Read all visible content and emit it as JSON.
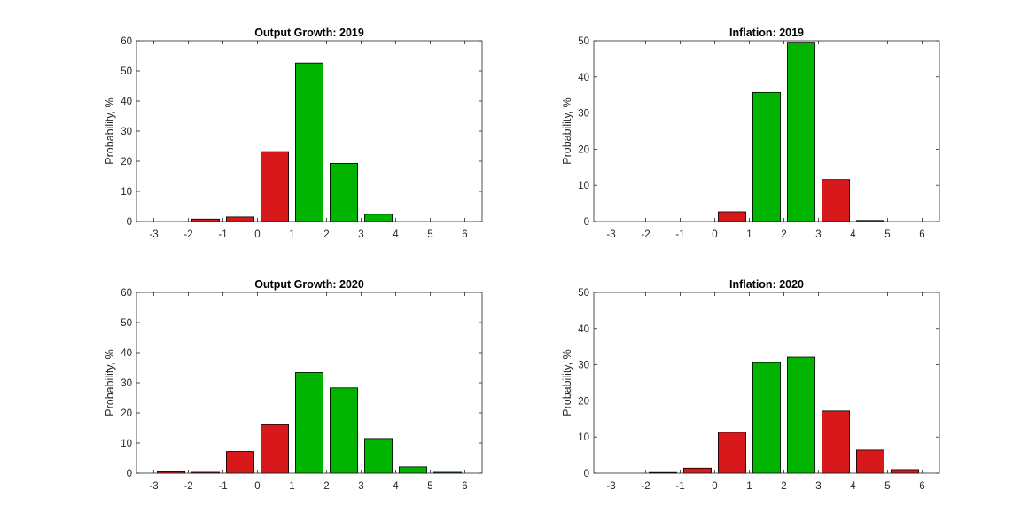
{
  "figure_colors": {
    "below": "#d7191c",
    "within": "#00b400",
    "edge": "#000000",
    "axis": "#262626",
    "background": "#ffffff"
  },
  "chart_data": [
    {
      "type": "bar",
      "title": "Output Growth: 2019",
      "ylabel": "Probability, %",
      "xlabel": "",
      "xlim": [
        -3.5,
        6.5
      ],
      "ylim": [
        0,
        60
      ],
      "xticks": [
        -3,
        -2,
        -1,
        0,
        1,
        2,
        3,
        4,
        5,
        6
      ],
      "yticks": [
        0,
        10,
        20,
        30,
        40,
        50,
        60
      ],
      "bin_edges": [
        -3,
        -2,
        -1,
        0,
        1,
        2,
        3,
        4,
        5,
        6
      ],
      "values": [
        0,
        0.8,
        1.5,
        23.2,
        52.6,
        19.3,
        2.4,
        0,
        0
      ],
      "colors": [
        "red",
        "red",
        "red",
        "red",
        "green",
        "green",
        "green",
        "green",
        "green"
      ]
    },
    {
      "type": "bar",
      "title": "Inflation: 2019",
      "ylabel": "Probability, %",
      "xlabel": "",
      "xlim": [
        -3.5,
        6.5
      ],
      "ylim": [
        0,
        50
      ],
      "xticks": [
        -3,
        -2,
        -1,
        0,
        1,
        2,
        3,
        4,
        5,
        6
      ],
      "yticks": [
        0,
        10,
        20,
        30,
        40,
        50
      ],
      "bin_edges": [
        -3,
        -2,
        -1,
        0,
        1,
        2,
        3,
        4,
        5,
        6
      ],
      "values": [
        0,
        0,
        0,
        2.7,
        35.7,
        49.6,
        11.6,
        0.3,
        0
      ],
      "colors": [
        "red",
        "red",
        "red",
        "red",
        "green",
        "green",
        "red",
        "red",
        "red"
      ]
    },
    {
      "type": "bar",
      "title": "Output Growth: 2020",
      "ylabel": "Probability, %",
      "xlabel": "",
      "xlim": [
        -3.5,
        6.5
      ],
      "ylim": [
        0,
        60
      ],
      "xticks": [
        -3,
        -2,
        -1,
        0,
        1,
        2,
        3,
        4,
        5,
        6
      ],
      "yticks": [
        0,
        10,
        20,
        30,
        40,
        50,
        60
      ],
      "bin_edges": [
        -3,
        -2,
        -1,
        0,
        1,
        2,
        3,
        4,
        5,
        6
      ],
      "values": [
        0.5,
        0.3,
        7.2,
        16.1,
        33.4,
        28.3,
        11.5,
        2.1,
        0.3
      ],
      "colors": [
        "red",
        "red",
        "red",
        "red",
        "green",
        "green",
        "green",
        "green",
        "green"
      ]
    },
    {
      "type": "bar",
      "title": "Inflation: 2020",
      "ylabel": "Probability, %",
      "xlabel": "",
      "xlim": [
        -3.5,
        6.5
      ],
      "ylim": [
        0,
        50
      ],
      "xticks": [
        -3,
        -2,
        -1,
        0,
        1,
        2,
        3,
        4,
        5,
        6
      ],
      "yticks": [
        0,
        10,
        20,
        30,
        40,
        50
      ],
      "bin_edges": [
        -3,
        -2,
        -1,
        0,
        1,
        2,
        3,
        4,
        5,
        6
      ],
      "values": [
        0,
        0.2,
        1.4,
        11.3,
        30.6,
        32.1,
        17.2,
        6.4,
        1.0
      ],
      "colors": [
        "red",
        "red",
        "red",
        "red",
        "green",
        "green",
        "red",
        "red",
        "red"
      ]
    }
  ]
}
